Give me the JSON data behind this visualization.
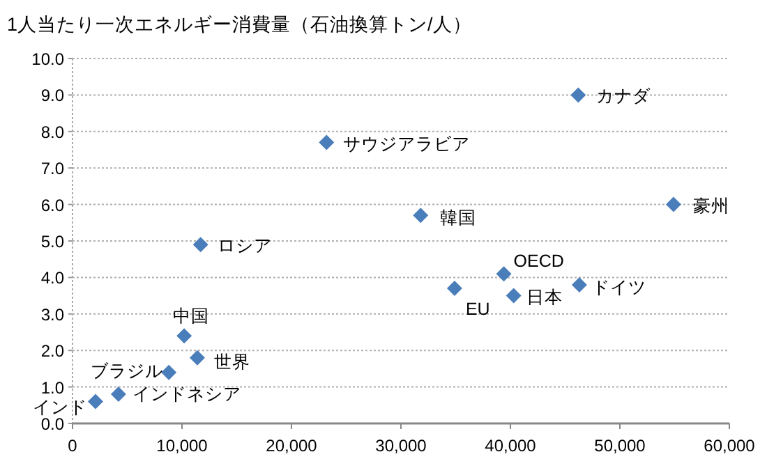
{
  "chart_data": {
    "type": "scatter",
    "title": "1人当たり一次エネルギー消費量（石油換算トン/人）",
    "series": [
      {
        "color": "#4a7ebb",
        "x": [
          2100,
          4200,
          8800,
          10200,
          11400,
          11700,
          23200,
          31800,
          34900,
          39400,
          40300,
          46300,
          46200,
          54900
        ],
        "values": [
          0.6,
          0.8,
          1.4,
          2.4,
          1.8,
          4.9,
          7.7,
          5.7,
          3.7,
          4.1,
          3.5,
          3.8,
          9.0,
          6.0
        ]
      }
    ],
    "annotations": [
      {
        "text": "インド",
        "x": 2100,
        "y": 0.6
      },
      {
        "text": "インドネシア",
        "x": 4200,
        "y": 0.8
      },
      {
        "text": "ブラジル",
        "x": 8800,
        "y": 1.4
      },
      {
        "text": "中国",
        "x": 10200,
        "y": 2.4
      },
      {
        "text": "世界",
        "x": 11400,
        "y": 1.8
      },
      {
        "text": "ロシア",
        "x": 11700,
        "y": 4.9
      },
      {
        "text": "サウジアラビア",
        "x": 23200,
        "y": 7.7
      },
      {
        "text": "韓国",
        "x": 31800,
        "y": 5.7
      },
      {
        "text": "EU",
        "x": 34900,
        "y": 3.7
      },
      {
        "text": "OECD",
        "x": 39400,
        "y": 4.1
      },
      {
        "text": "日本",
        "x": 40300,
        "y": 3.5
      },
      {
        "text": "ドイツ",
        "x": 46300,
        "y": 3.8
      },
      {
        "text": "カナダ",
        "x": 46200,
        "y": 9.0
      },
      {
        "text": "豪州",
        "x": 54900,
        "y": 6.0
      }
    ],
    "xlim": [
      0,
      60000
    ],
    "xticks": [
      0,
      {
        "value": 10000,
        "label": "10,000"
      },
      {
        "value": 20000,
        "label": "20,000"
      },
      {
        "value": 30000,
        "label": "30,000"
      },
      {
        "value": 40000,
        "label": "40,000"
      },
      {
        "value": 50000,
        "label": "50,000"
      },
      {
        "value": 60000,
        "label": "60,000"
      }
    ],
    "ylim": [
      0,
      10
    ],
    "yticks": [
      {
        "value": 0,
        "label": "0.0"
      },
      {
        "value": 1,
        "label": "1.0"
      },
      {
        "value": 2,
        "label": "2.0"
      },
      {
        "value": 3,
        "label": "3.0"
      },
      {
        "value": 4,
        "label": "4.0"
      },
      {
        "value": 5,
        "label": "5.0"
      },
      {
        "value": 6,
        "label": "6.0"
      },
      {
        "value": 7,
        "label": "7.0"
      },
      {
        "value": 8,
        "label": "8.0"
      },
      {
        "value": 9,
        "label": "9.0"
      },
      {
        "value": 10,
        "label": "10.0"
      }
    ],
    "grid": "y",
    "marker": "diamond"
  }
}
